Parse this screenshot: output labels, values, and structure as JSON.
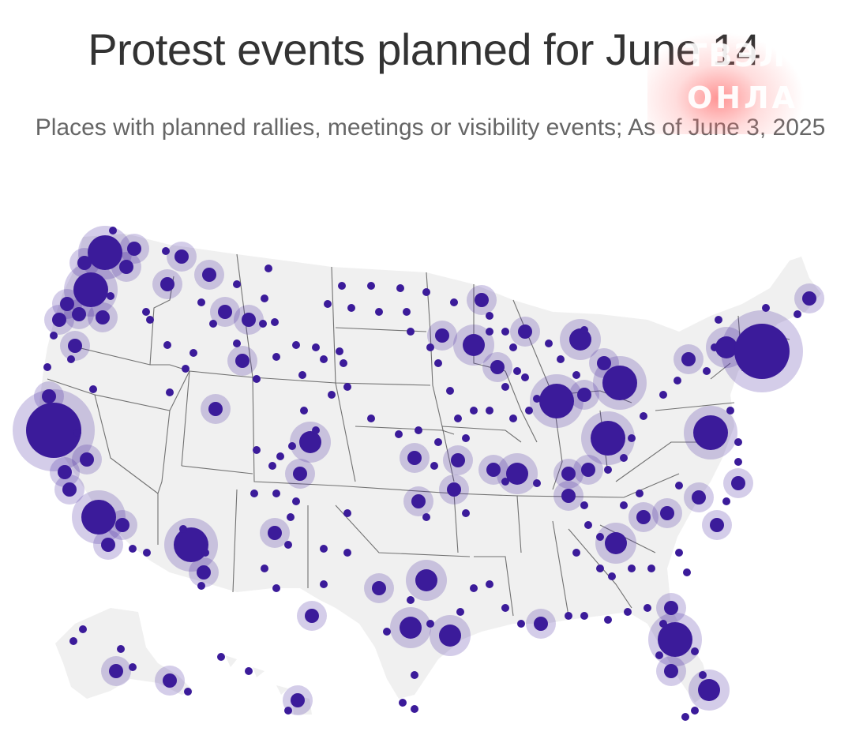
{
  "header": {
    "title": "Protest events planned for June 14",
    "subtitle": "Places with planned rallies, meetings or visibility events; As of June 3, 2025"
  },
  "watermark": {
    "line1": "ТВЭЛ",
    "line2": "ОНЛА"
  },
  "colors": {
    "land": "#f0f0f0",
    "border": "#5a5a5a",
    "dot": "#3b1b9a",
    "halo": "#c9bdf0",
    "title": "#333333",
    "subtitle": "#666666"
  }
}
